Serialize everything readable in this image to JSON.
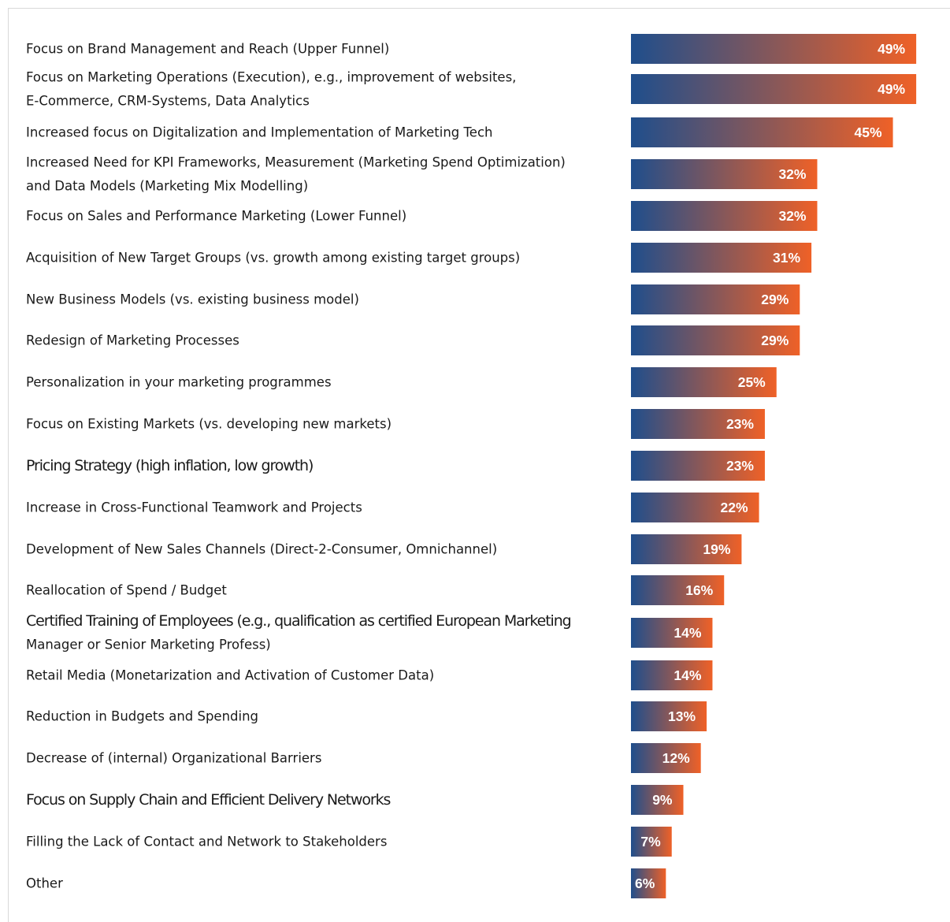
{
  "colors": {
    "bar_start": "#1f4e8c",
    "bar_end": "#ef6127",
    "label_text": "#1a1a1a",
    "value_text": "#ffffff"
  },
  "chart_data": {
    "type": "bar",
    "orientation": "horizontal",
    "title": "",
    "xlabel": "",
    "ylabel": "",
    "value_suffix": "%",
    "xlim": [
      0,
      50
    ],
    "grid": false,
    "legend": "none",
    "categories": [
      [
        "Focus on Brand Management and Reach (Upper Funnel)"
      ],
      [
        "Focus on Marketing Operations (Execution), e.g., improvement of websites,",
        "E-Commerce, CRM-Systems, Data Analytics"
      ],
      [
        "Increased focus on Digitalization and Implementation of Marketing Tech"
      ],
      [
        "Increased Need for KPI Frameworks, Measurement (Marketing Spend Optimization)",
        "and Data Models (Marketing Mix Modelling)"
      ],
      [
        "Focus on Sales and Performance Marketing (Lower Funnel)"
      ],
      [
        "Acquisition of New Target Groups (vs. growth among existing target groups)"
      ],
      [
        "New Business Models (vs. existing business model)"
      ],
      [
        "Redesign of Marketing Processes"
      ],
      [
        "Personalization in your marketing programmes"
      ],
      [
        "Focus on Existing Markets (vs. developing new markets)"
      ],
      [
        "Pricing Strategy (high inflation, low growth)"
      ],
      [
        "Increase in Cross-Functional Teamwork and Projects"
      ],
      [
        "Development of New Sales Channels (Direct-2-Consumer, Omnichannel)"
      ],
      [
        "Reallocation of Spend / Budget"
      ],
      [
        "Certified Training of Employees (e.g., qualification as certified European Marketing",
        "Manager or Senior Marketing Profess)"
      ],
      [
        "Retail Media (Monetarization and Activation of Customer Data)"
      ],
      [
        "Reduction in Budgets and Spending"
      ],
      [
        "Decrease of (internal) Organizational Barriers"
      ],
      [
        "Focus on Supply Chain and Efficient Delivery Networks"
      ],
      [
        "Filling the Lack of Contact and Network to Stakeholders"
      ],
      [
        "Other"
      ]
    ],
    "values": [
      49,
      49,
      45,
      32,
      32,
      31,
      29,
      29,
      25,
      23,
      23,
      22,
      19,
      16,
      14,
      14,
      13,
      12,
      9,
      7,
      6
    ],
    "value_labels": [
      "49%",
      "49%",
      "45%",
      "32%",
      "32%",
      "31%",
      "29%",
      "29%",
      "25%",
      "23%",
      "23%",
      "22%",
      "19%",
      "16%",
      "14%",
      "14%",
      "13%",
      "12%",
      "9%",
      "7%",
      "6%"
    ]
  }
}
